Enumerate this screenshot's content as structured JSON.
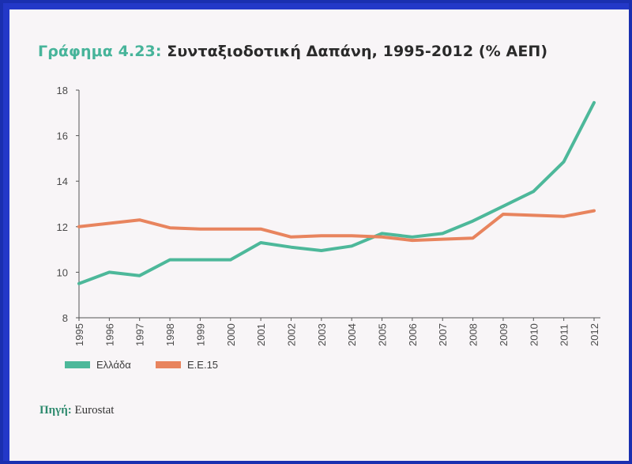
{
  "title": {
    "prefix": "Γράφημα 4.23:",
    "text": "Συνταξιοδοτική Δαπάνη, 1995-2012 (% ΑΕΠ)"
  },
  "source": {
    "label": "Πηγή:",
    "text": "Eurostat"
  },
  "colors": {
    "greece": "#4db89a",
    "eu15": "#e8845e",
    "axis": "#555555"
  },
  "chart_data": {
    "type": "line",
    "title": "Συνταξιοδοτική Δαπάνη, 1995-2012 (% ΑΕΠ)",
    "xlabel": "",
    "ylabel": "",
    "ylim": [
      8,
      18
    ],
    "yticks": [
      8,
      10,
      12,
      14,
      16,
      18
    ],
    "x": [
      "1995",
      "1996",
      "1997",
      "1998",
      "1999",
      "2000",
      "2001",
      "2002",
      "2003",
      "2004",
      "2005",
      "2006",
      "2007",
      "2008",
      "2009",
      "2010",
      "2011",
      "2012"
    ],
    "series": [
      {
        "name": "Ελλάδα",
        "color": "#4db89a",
        "values": [
          9.5,
          10.0,
          9.85,
          10.55,
          10.55,
          10.55,
          11.3,
          11.1,
          10.95,
          11.15,
          11.7,
          11.55,
          11.7,
          12.25,
          12.9,
          13.55,
          14.85,
          17.45
        ]
      },
      {
        "name": "Ε.Ε.15",
        "color": "#e8845e",
        "values": [
          12.0,
          12.15,
          12.3,
          11.95,
          11.9,
          11.9,
          11.9,
          11.55,
          11.6,
          11.6,
          11.55,
          11.4,
          11.45,
          11.5,
          12.55,
          12.5,
          12.45,
          12.7
        ]
      }
    ],
    "legend": [
      "Ελλάδα",
      "Ε.Ε.15"
    ],
    "legend_position": "bottom-left",
    "grid": false
  }
}
